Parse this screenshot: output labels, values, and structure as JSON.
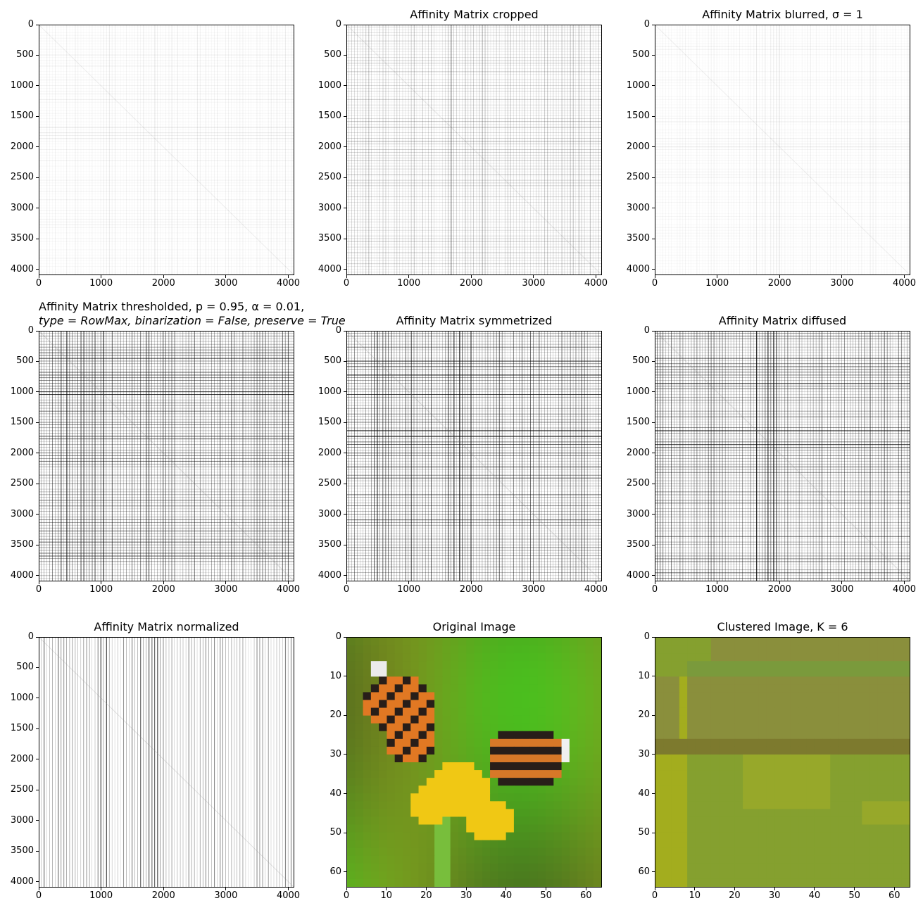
{
  "chart_data": [
    {
      "type": "heatmap",
      "title": "",
      "subtitle": "",
      "xlim": [
        0,
        4096
      ],
      "ylim": [
        4096,
        0
      ],
      "xticks": [
        "0",
        "1000",
        "2000",
        "3000",
        "4000"
      ],
      "yticks": [
        "0",
        "500",
        "1000",
        "1500",
        "2000",
        "2500",
        "3000",
        "3500",
        "4000"
      ],
      "colormap": "gray_r",
      "intensity": 0.06
    },
    {
      "type": "heatmap",
      "title": "Affinity Matrix cropped",
      "subtitle": "",
      "xlim": [
        0,
        4096
      ],
      "ylim": [
        4096,
        0
      ],
      "xticks": [
        "0",
        "1000",
        "2000",
        "3000",
        "4000"
      ],
      "yticks": [
        "0",
        "500",
        "1000",
        "1500",
        "2000",
        "2500",
        "3000",
        "3500",
        "4000"
      ],
      "colormap": "gray_r",
      "intensity": 0.22
    },
    {
      "type": "heatmap",
      "title": "Affinity Matrix blurred, σ = 1",
      "subtitle": "",
      "xlim": [
        0,
        4096
      ],
      "ylim": [
        4096,
        0
      ],
      "xticks": [
        "0",
        "1000",
        "2000",
        "3000",
        "4000"
      ],
      "yticks": [
        "0",
        "500",
        "1000",
        "1500",
        "2000",
        "2500",
        "3000",
        "3500",
        "4000"
      ],
      "colormap": "gray_r",
      "intensity": 0.05
    },
    {
      "type": "heatmap",
      "title": "Affinity Matrix thresholded, p = 0.95, α = 0.01,",
      "subtitle": "type = RowMax, binarization = False, preserve = True",
      "xlim": [
        0,
        4096
      ],
      "ylim": [
        4096,
        0
      ],
      "xticks": [
        "0",
        "1000",
        "2000",
        "3000",
        "4000"
      ],
      "yticks": [
        "0",
        "500",
        "1000",
        "1500",
        "2000",
        "2500",
        "3000",
        "3500",
        "4000"
      ],
      "colormap": "gray_r",
      "intensity": 0.55
    },
    {
      "type": "heatmap",
      "title": "Affinity Matrix symmetrized",
      "subtitle": "",
      "xlim": [
        0,
        4096
      ],
      "ylim": [
        4096,
        0
      ],
      "xticks": [
        "0",
        "1000",
        "2000",
        "3000",
        "4000"
      ],
      "yticks": [
        "0",
        "500",
        "1000",
        "1500",
        "2000",
        "2500",
        "3000",
        "3500",
        "4000"
      ],
      "colormap": "gray_r",
      "intensity": 0.55
    },
    {
      "type": "heatmap",
      "title": "Affinity Matrix diffused",
      "subtitle": "",
      "xlim": [
        0,
        4096
      ],
      "ylim": [
        4096,
        0
      ],
      "xticks": [
        "0",
        "1000",
        "2000",
        "3000",
        "4000"
      ],
      "yticks": [
        "0",
        "500",
        "1000",
        "1500",
        "2000",
        "2500",
        "3000",
        "3500",
        "4000"
      ],
      "colormap": "gray_r",
      "intensity": 0.5
    },
    {
      "type": "heatmap",
      "title": "Affinity Matrix normalized",
      "subtitle": "",
      "xlim": [
        0,
        4096
      ],
      "ylim": [
        4096,
        0
      ],
      "xticks": [
        "0",
        "1000",
        "2000",
        "3000",
        "4000"
      ],
      "yticks": [
        "0",
        "500",
        "1000",
        "1500",
        "2000",
        "2500",
        "3000",
        "3500",
        "4000"
      ],
      "colormap": "gray_r",
      "intensity": 0.45
    },
    {
      "type": "heatmap",
      "title": "Original Image",
      "subtitle": "",
      "xlim": [
        0,
        64
      ],
      "ylim": [
        64,
        0
      ],
      "xticks": [
        "0",
        "10",
        "20",
        "30",
        "40",
        "50",
        "60"
      ],
      "yticks": [
        "0",
        "10",
        "20",
        "30",
        "40",
        "50",
        "60"
      ],
      "colormap": "rgb"
    },
    {
      "type": "heatmap",
      "title": "Clustered Image, K = 6",
      "subtitle": "",
      "xlim": [
        0,
        64
      ],
      "ylim": [
        64,
        0
      ],
      "xticks": [
        "0",
        "10",
        "20",
        "30",
        "40",
        "50",
        "60"
      ],
      "yticks": [
        "0",
        "10",
        "20",
        "30",
        "40",
        "50",
        "60"
      ],
      "colormap": "rgb",
      "clusters": 6,
      "cluster_colors": [
        "#8a8f3c",
        "#7a9a3c",
        "#a3ad1e",
        "#85a02f",
        "#7d7a2e",
        "#97a82a"
      ]
    }
  ]
}
